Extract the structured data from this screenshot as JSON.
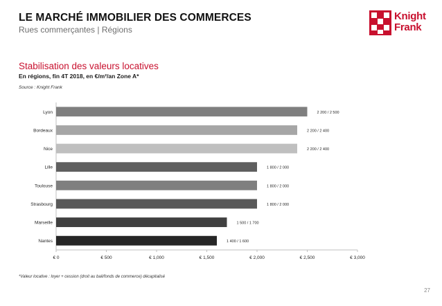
{
  "header": {
    "title": "LE MARCHÉ IMMOBILIER DES COMMERCES",
    "subtitle": "Rues commerçantes | Régions"
  },
  "logo": {
    "line1": "Knight",
    "line2": "Frank",
    "color": "#c8102e"
  },
  "section": {
    "title": "Stabilisation des valeurs locatives",
    "subtitle": "En régions, fin 4T 2018, en €/m²/an Zone A*",
    "source": "Source : Knight Frank"
  },
  "chart_data": {
    "type": "bar",
    "orientation": "horizontal",
    "categories": [
      "Lyon",
      "Bordeaux",
      "Nice",
      "Lille",
      "Toulouse",
      "Strasbourg",
      "Marseille",
      "Nantes"
    ],
    "values": [
      2500,
      2400,
      2400,
      2000,
      2000,
      2000,
      1700,
      1600
    ],
    "data_labels": [
      "2 200 / 2 500",
      "2 200 / 2 400",
      "2 200 / 2 400",
      "1 800 / 2 000",
      "1 800 / 2 000",
      "1 800 / 2 000",
      "1 500 / 1 700",
      "1 400 / 1 600"
    ],
    "colors": [
      "#7f7f7f",
      "#a6a6a6",
      "#bfbfbf",
      "#5f5f5f",
      "#7f7f7f",
      "#595959",
      "#404040",
      "#262626"
    ],
    "xlim": [
      0,
      3000
    ],
    "xticks": [
      0,
      500,
      1000,
      1500,
      2000,
      2500,
      3000
    ],
    "xtick_labels": [
      "€ 0",
      "€ 500",
      "€ 1,000",
      "€ 1,500",
      "€ 2,000",
      "€ 2,500",
      "€ 3,000"
    ],
    "grid": false,
    "legend": "none",
    "title": "",
    "xlabel": "",
    "ylabel": ""
  },
  "footnote": "*Valeur locative : loyer + cession (droit au bail/fonds de commerce) décapitalisé",
  "page_number": "27"
}
